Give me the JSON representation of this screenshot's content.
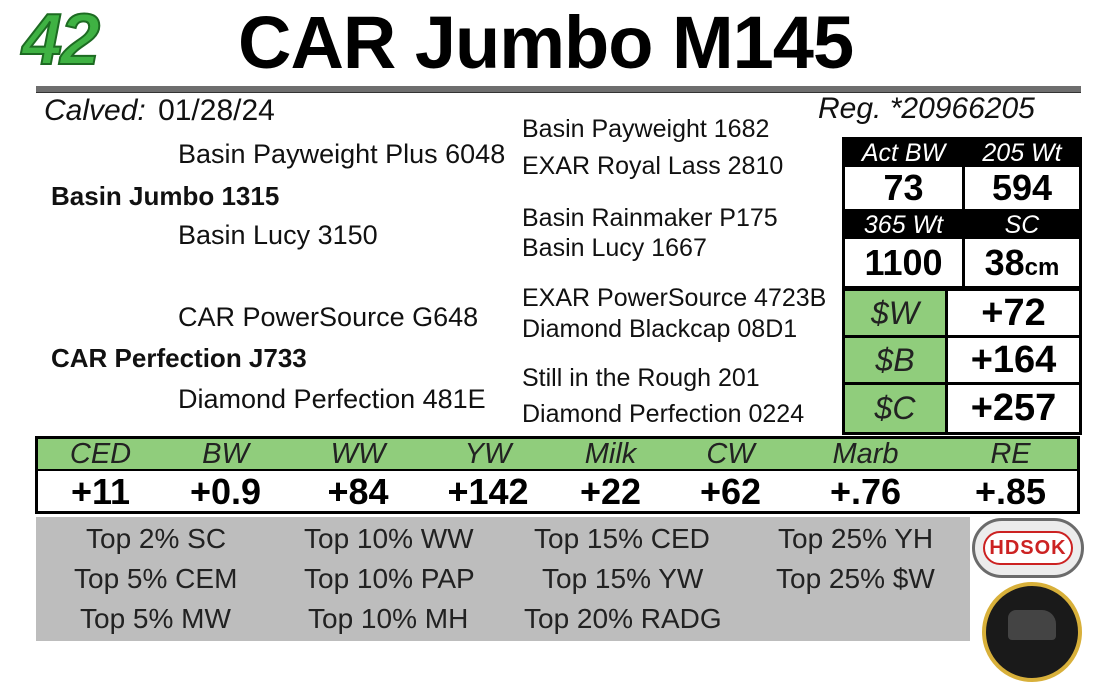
{
  "header": {
    "lot_number": "42",
    "animal_name": "CAR Jumbo M145",
    "calved_label": "Calved:",
    "calved_date": "01/28/24",
    "registration": "Reg. *20966205"
  },
  "pedigree": {
    "sire_sire": "Basin Payweight Plus 6048",
    "sire": "Basin Jumbo 1315",
    "sire_dam": "Basin Lucy 3150",
    "dam_sire": "CAR PowerSource G648",
    "dam": "CAR Perfection J733",
    "dam_dam": "Diamond Perfection 481E",
    "gen3": [
      "Basin Payweight 1682",
      "EXAR Royal Lass 2810",
      "Basin Rainmaker P175",
      "Basin Lucy 1667",
      "EXAR PowerSource 4723B",
      "Diamond Blackcap 08D1",
      "Still in the Rough 201",
      "Diamond Perfection 0224"
    ]
  },
  "weights": {
    "act_bw_label": "Act BW",
    "act_bw": "73",
    "wt205_label": "205 Wt",
    "wt205": "594",
    "wt365_label": "365 Wt",
    "wt365": "1100",
    "sc_label": "SC",
    "sc_value": "38",
    "sc_unit": "cm"
  },
  "indexes": [
    {
      "label": "$W",
      "value": "+72"
    },
    {
      "label": "$B",
      "value": "+164"
    },
    {
      "label": "$C",
      "value": "+257"
    }
  ],
  "epds": [
    {
      "label": "CED",
      "value": "+11"
    },
    {
      "label": "BW",
      "value": "+0.9"
    },
    {
      "label": "WW",
      "value": "+84"
    },
    {
      "label": "YW",
      "value": "+142"
    },
    {
      "label": "Milk",
      "value": "+22"
    },
    {
      "label": "CW",
      "value": "+62"
    },
    {
      "label": "Marb",
      "value": "+.76"
    },
    {
      "label": "RE",
      "value": "+.85"
    }
  ],
  "top_rankings": [
    "Top 2% SC",
    "Top 10% WW",
    "Top 15% CED",
    "Top 25% YH",
    "Top 5% CEM",
    "Top 10% PAP",
    "Top 15% YW",
    "Top 25% $W",
    "Top 5% MW",
    "Top 10% MH",
    "Top 20% RADG"
  ],
  "logos": {
    "hdsok_text": "HDSOK"
  },
  "colors": {
    "lot_green": "#3fb243",
    "index_green": "#90cd7c",
    "tops_gray": "#bdbdbd"
  }
}
